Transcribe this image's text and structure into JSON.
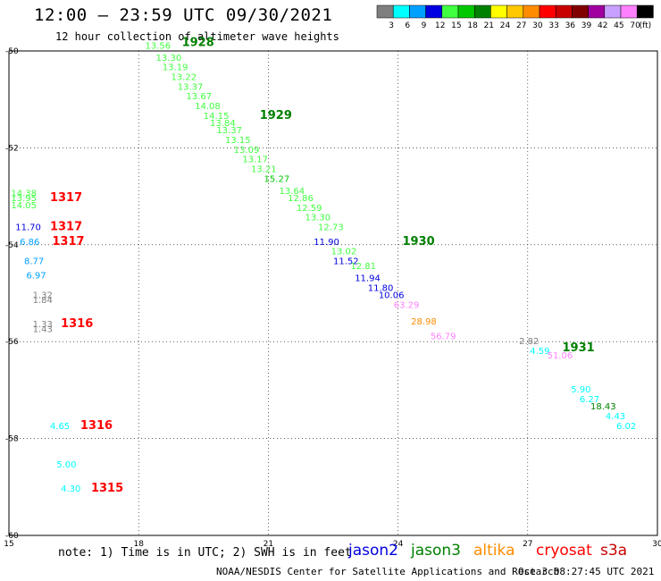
{
  "header": {
    "title": "12:00 – 23:59 UTC 09/30/2021",
    "subtitle": "12 hour collection of altimeter wave heights"
  },
  "color_scale": {
    "unit_label": "(ft)",
    "bins": [
      {
        "label": "3",
        "color": "#7f7f7f"
      },
      {
        "label": "6",
        "color": "#00ffff"
      },
      {
        "label": "9",
        "color": "#00a0ff"
      },
      {
        "label": "12",
        "color": "#0000e0"
      },
      {
        "label": "15",
        "color": "#40ff40"
      },
      {
        "label": "18",
        "color": "#00c800"
      },
      {
        "label": "21",
        "color": "#008000"
      },
      {
        "label": "24",
        "color": "#ffff00"
      },
      {
        "label": "27",
        "color": "#ffc800"
      },
      {
        "label": "30",
        "color": "#ff8c00"
      },
      {
        "label": "33",
        "color": "#ff0000"
      },
      {
        "label": "36",
        "color": "#c80000"
      },
      {
        "label": "39",
        "color": "#800000"
      },
      {
        "label": "42",
        "color": "#a000a0"
      },
      {
        "label": "45",
        "color": "#c8a0ff"
      },
      {
        "label": "70",
        "color": "#ff80ff"
      },
      {
        "label": "",
        "color": "#000000"
      }
    ]
  },
  "axes": {
    "x_ticks": [
      "15",
      "18",
      "21",
      "24",
      "27",
      "30"
    ],
    "y_ticks": [
      "-50",
      "-52",
      "-54",
      "-56",
      "-58",
      "-60"
    ]
  },
  "chart_data": {
    "type": "scatter",
    "xlim": [
      15,
      30
    ],
    "ylim": [
      -60,
      -50
    ],
    "grid": true,
    "points": [
      {
        "x": 18.15,
        "y": -49.95,
        "label": "13.56",
        "color": "#40ff40"
      },
      {
        "x": 18.4,
        "y": -50.2,
        "label": "13.30",
        "color": "#40ff40"
      },
      {
        "x": 18.55,
        "y": -50.4,
        "label": "13.19",
        "color": "#40ff40"
      },
      {
        "x": 18.75,
        "y": -50.6,
        "label": "13.22",
        "color": "#40ff40"
      },
      {
        "x": 18.9,
        "y": -50.8,
        "label": "13.37",
        "color": "#40ff40"
      },
      {
        "x": 19.1,
        "y": -51.0,
        "label": "13.67",
        "color": "#40ff40"
      },
      {
        "x": 19.3,
        "y": -51.2,
        "label": "14.08",
        "color": "#40ff40"
      },
      {
        "x": 19.5,
        "y": -51.4,
        "label": "14.15",
        "color": "#40ff40"
      },
      {
        "x": 19.65,
        "y": -51.55,
        "label": "13.84",
        "color": "#40ff40"
      },
      {
        "x": 19.8,
        "y": -51.7,
        "label": "13.37",
        "color": "#40ff40"
      },
      {
        "x": 20.0,
        "y": -51.9,
        "label": "13.15",
        "color": "#40ff40"
      },
      {
        "x": 20.2,
        "y": -52.1,
        "label": "13.09",
        "color": "#40ff40"
      },
      {
        "x": 20.4,
        "y": -52.3,
        "label": "13.17",
        "color": "#40ff40"
      },
      {
        "x": 20.6,
        "y": -52.5,
        "label": "13.21",
        "color": "#40ff40"
      },
      {
        "x": 20.9,
        "y": -52.7,
        "label": "15.27",
        "color": "#00c800"
      },
      {
        "x": 21.25,
        "y": -52.95,
        "label": "13.64",
        "color": "#40ff40"
      },
      {
        "x": 21.45,
        "y": -53.1,
        "label": "12.86",
        "color": "#40ff40"
      },
      {
        "x": 21.65,
        "y": -53.3,
        "label": "12.59",
        "color": "#40ff40"
      },
      {
        "x": 21.85,
        "y": -53.5,
        "label": "13.30",
        "color": "#40ff40"
      },
      {
        "x": 22.15,
        "y": -53.7,
        "label": "12.73",
        "color": "#40ff40"
      },
      {
        "x": 22.05,
        "y": -54.0,
        "label": "11.90",
        "color": "#0000e0"
      },
      {
        "x": 22.45,
        "y": -54.2,
        "label": "13.02",
        "color": "#40ff40"
      },
      {
        "x": 22.5,
        "y": -54.4,
        "label": "11.52",
        "color": "#0000e0"
      },
      {
        "x": 22.9,
        "y": -54.5,
        "label": "12.81",
        "color": "#40ff40"
      },
      {
        "x": 23.0,
        "y": -54.75,
        "label": "11.94",
        "color": "#0000e0"
      },
      {
        "x": 23.3,
        "y": -54.95,
        "label": "11.80",
        "color": "#0000e0"
      },
      {
        "x": 23.55,
        "y": -55.1,
        "label": "10.06",
        "color": "#0000e0"
      },
      {
        "x": 23.9,
        "y": -55.3,
        "label": "63.29",
        "color": "#ff80ff"
      },
      {
        "x": 24.3,
        "y": -55.65,
        "label": "28.98",
        "color": "#ff8c00"
      },
      {
        "x": 24.75,
        "y": -55.95,
        "label": "56.79",
        "color": "#ff80ff"
      },
      {
        "x": 15.05,
        "y": -53.0,
        "label": "14.38",
        "color": "#40ff40"
      },
      {
        "x": 15.05,
        "y": -53.1,
        "label": "13.95",
        "color": "#40ff40"
      },
      {
        "x": 15.05,
        "y": -53.25,
        "label": "14.05",
        "color": "#40ff40"
      },
      {
        "x": 15.15,
        "y": -53.7,
        "label": "11.70",
        "color": "#0000e0"
      },
      {
        "x": 15.25,
        "y": -54.0,
        "label": "6.86",
        "color": "#00a0ff"
      },
      {
        "x": 15.35,
        "y": -54.4,
        "label": "8.77",
        "color": "#00a0ff"
      },
      {
        "x": 15.4,
        "y": -54.7,
        "label": "6.97",
        "color": "#00a0ff"
      },
      {
        "x": 15.55,
        "y": -55.1,
        "label": "1.32",
        "color": "#7f7f7f"
      },
      {
        "x": 15.55,
        "y": -55.2,
        "label": "1.84",
        "color": "#7f7f7f"
      },
      {
        "x": 15.55,
        "y": -55.7,
        "label": "1.33",
        "color": "#7f7f7f"
      },
      {
        "x": 15.55,
        "y": -55.8,
        "label": "1.43",
        "color": "#7f7f7f"
      },
      {
        "x": 15.95,
        "y": -57.8,
        "label": "4.65",
        "color": "#00ffff"
      },
      {
        "x": 16.1,
        "y": -58.6,
        "label": "5.00",
        "color": "#00ffff"
      },
      {
        "x": 16.2,
        "y": -59.1,
        "label": "4.30",
        "color": "#00ffff"
      },
      {
        "x": 26.8,
        "y": -56.05,
        "label": "2.82",
        "color": "#7f7f7f"
      },
      {
        "x": 27.05,
        "y": -56.25,
        "label": "4.59",
        "color": "#00ffff"
      },
      {
        "x": 27.45,
        "y": -56.35,
        "label": "51.06",
        "color": "#ff80ff"
      },
      {
        "x": 28.0,
        "y": -57.05,
        "label": "5.90",
        "color": "#00ffff"
      },
      {
        "x": 28.2,
        "y": -57.25,
        "label": "6.27",
        "color": "#00ffff"
      },
      {
        "x": 28.45,
        "y": -57.4,
        "label": "18.43",
        "color": "#008000"
      },
      {
        "x": 28.8,
        "y": -57.6,
        "label": "4.43",
        "color": "#00ffff"
      },
      {
        "x": 29.05,
        "y": -57.8,
        "label": "6.02",
        "color": "#00ffff"
      }
    ],
    "time_labels": [
      {
        "x": 19.0,
        "y": -49.9,
        "label": "1928",
        "color": "#008000"
      },
      {
        "x": 20.8,
        "y": -51.4,
        "label": "1929",
        "color": "#008000"
      },
      {
        "x": 24.1,
        "y": -54.0,
        "label": "1930",
        "color": "#008000"
      },
      {
        "x": 27.8,
        "y": -56.2,
        "label": "1931",
        "color": "#008000"
      },
      {
        "x": 15.95,
        "y": -53.1,
        "label": "1317",
        "color": "#ff0000"
      },
      {
        "x": 15.95,
        "y": -53.7,
        "label": "1317",
        "color": "#ff0000"
      },
      {
        "x": 16.0,
        "y": -54.0,
        "label": "1317",
        "color": "#ff0000"
      },
      {
        "x": 16.2,
        "y": -55.7,
        "label": "1316",
        "color": "#ff0000"
      },
      {
        "x": 16.65,
        "y": -57.8,
        "label": "1316",
        "color": "#ff0000"
      },
      {
        "x": 16.9,
        "y": -59.1,
        "label": "1315",
        "color": "#ff0000"
      }
    ]
  },
  "footer": {
    "note": "note: 1) Time is in UTC; 2) SWH is in feet",
    "missions": [
      {
        "label": "jason2",
        "color": "#0000e0"
      },
      {
        "label": "jason3",
        "color": "#008000"
      },
      {
        "label": "altika",
        "color": "#ff8c00"
      },
      {
        "label": "cryosat",
        "color": "#ff0000"
      },
      {
        "label": "s3a",
        "color": "#c80000"
      }
    ],
    "credit": "NOAA/NESDIS Center for Satellite Applications and Research",
    "timestamp": "Oct  3 08:27:45 UTC 2021"
  }
}
